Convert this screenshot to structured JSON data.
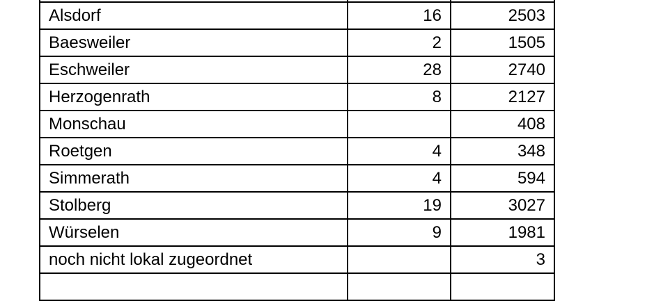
{
  "table": {
    "rows": [
      {
        "name": "Alsdorf",
        "a": "16",
        "b": "2503"
      },
      {
        "name": "Baesweiler",
        "a": "2",
        "b": "1505"
      },
      {
        "name": "Eschweiler",
        "a": "28",
        "b": "2740"
      },
      {
        "name": "Herzogenrath",
        "a": "8",
        "b": "2127"
      },
      {
        "name": "Monschau",
        "a": "",
        "b": "408"
      },
      {
        "name": "Roetgen",
        "a": "4",
        "b": "348"
      },
      {
        "name": "Simmerath",
        "a": "4",
        "b": "594"
      },
      {
        "name": "Stolberg",
        "a": "19",
        "b": "3027"
      },
      {
        "name": "Würselen",
        "a": "9",
        "b": "1981"
      },
      {
        "name": "noch nicht lokal zugeordnet",
        "a": "",
        "b": "3"
      }
    ]
  }
}
